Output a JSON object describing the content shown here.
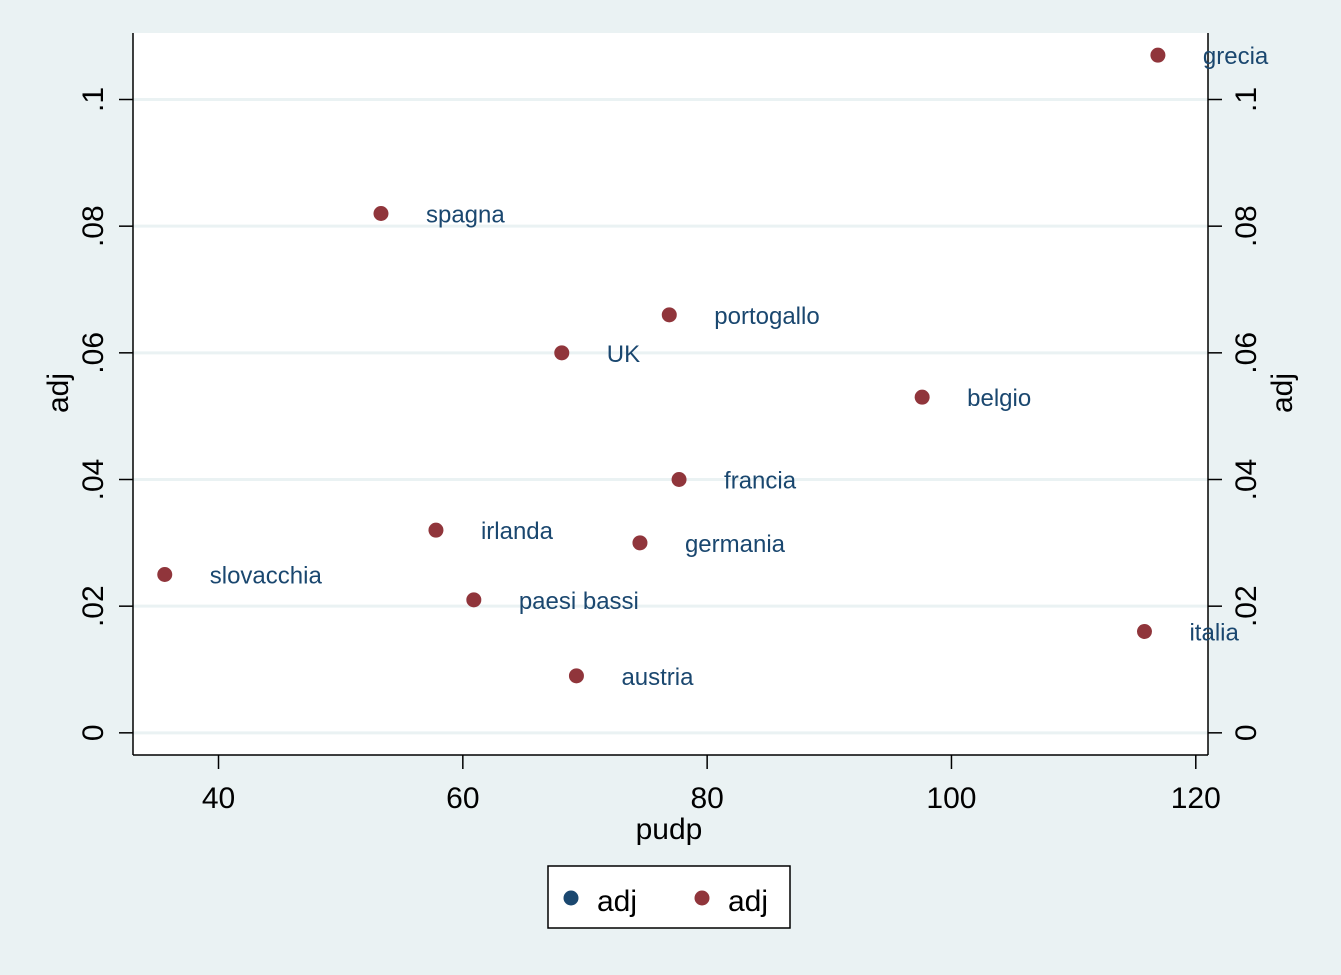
{
  "chart_data": {
    "type": "scatter",
    "xlabel": "pudp",
    "ylabel_left": "adj",
    "ylabel_right": "adj",
    "xlim": [
      33,
      121
    ],
    "ylim": [
      -0.0035,
      0.1105
    ],
    "x_ticks": [
      40,
      60,
      80,
      100,
      120
    ],
    "x_tick_labels": [
      "40",
      "60",
      "80",
      "100",
      "120"
    ],
    "y_ticks": [
      0,
      0.02,
      0.04,
      0.06,
      0.08,
      0.1
    ],
    "y_tick_labels": [
      "0",
      ".02",
      ".04",
      ".06",
      ".08",
      ".1"
    ],
    "grid": true,
    "legend": {
      "position": "bottom",
      "entries": [
        {
          "label": "adj",
          "color": "#1a476f"
        },
        {
          "label": "adj",
          "color": "#90353b"
        }
      ]
    },
    "series": [
      {
        "name": "adj",
        "color": "#90353b",
        "points": [
          {
            "label": "grecia",
            "x": 116.9,
            "y": 0.107
          },
          {
            "label": "spagna",
            "x": 53.3,
            "y": 0.082
          },
          {
            "label": "portogallo",
            "x": 76.9,
            "y": 0.066
          },
          {
            "label": "UK",
            "x": 68.1,
            "y": 0.06
          },
          {
            "label": "belgio",
            "x": 97.6,
            "y": 0.053
          },
          {
            "label": "francia",
            "x": 77.7,
            "y": 0.04
          },
          {
            "label": "irlanda",
            "x": 57.8,
            "y": 0.032
          },
          {
            "label": "germania",
            "x": 74.5,
            "y": 0.03
          },
          {
            "label": "slovacchia",
            "x": 35.6,
            "y": 0.025
          },
          {
            "label": "paesi bassi",
            "x": 60.9,
            "y": 0.021
          },
          {
            "label": "italia",
            "x": 115.8,
            "y": 0.016
          },
          {
            "label": "austria",
            "x": 69.3,
            "y": 0.009
          }
        ]
      }
    ]
  },
  "colors": {
    "background": "#eaf2f3",
    "plot_area": "#ffffff",
    "gridline": "#eaf2f3",
    "marker": "#90353b",
    "marker_label": "#1a476f",
    "legend_marker_1": "#1a476f",
    "legend_marker_2": "#90353b"
  }
}
